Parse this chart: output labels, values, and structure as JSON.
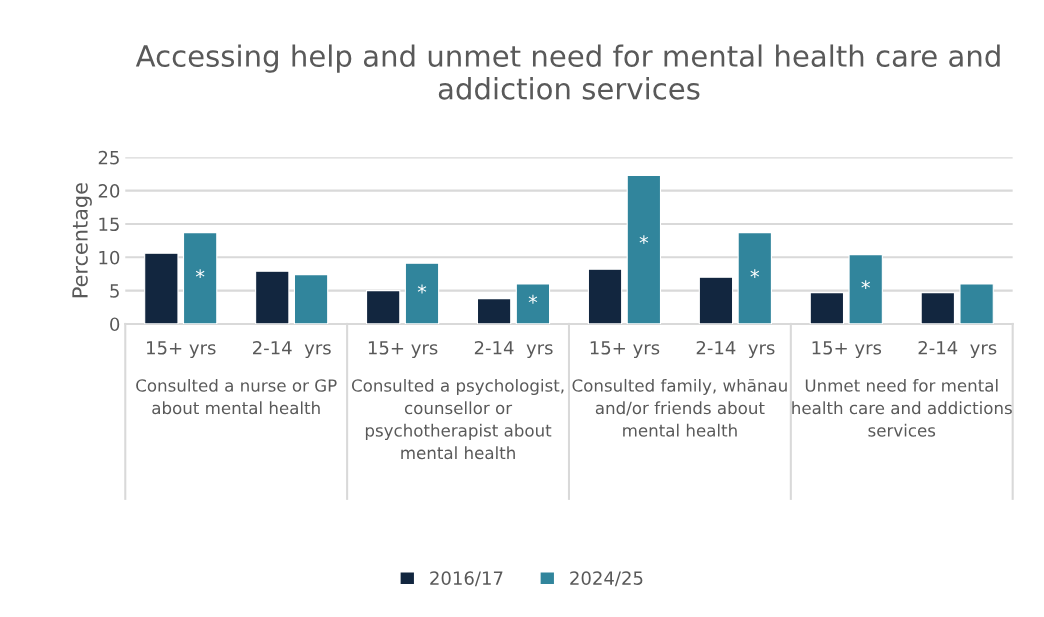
{
  "chart_data": {
    "type": "bar",
    "title": "Accessing help and unmet need for mental health care and addiction services",
    "ylabel": "Percentage",
    "categories": [
      "15+ yrs",
      "2-14  yrs",
      "15+ yrs",
      "2-14  yrs",
      "15+ yrs",
      "2-14  yrs",
      "15+ yrs",
      "2-14  yrs"
    ],
    "series": [
      {
        "name": "2016/17",
        "color": "#12263f",
        "values": [
          10.6,
          7.9,
          5.0,
          3.8,
          8.2,
          7.0,
          4.7,
          4.7
        ]
      },
      {
        "name": "2024/25",
        "color": "#31859c",
        "values": [
          13.7,
          7.4,
          9.1,
          6.0,
          22.3,
          13.7,
          10.4,
          6.0
        ],
        "value_labels": [
          "*",
          null,
          "*",
          "*",
          "*",
          "*",
          "*",
          null
        ]
      }
    ],
    "annotations": [
      "Consulted a nurse or GP about mental health",
      "Consulted a psychologist, counsellor or psychotherapist about mental health",
      "Consulted family, whānau and/or friends about mental health",
      "Unmet need for mental health care and addictions services"
    ],
    "ylim": [
      0,
      25
    ],
    "yticks": [
      0,
      5,
      10,
      15,
      20,
      25
    ],
    "grid": "y",
    "legend": "bottom"
  }
}
